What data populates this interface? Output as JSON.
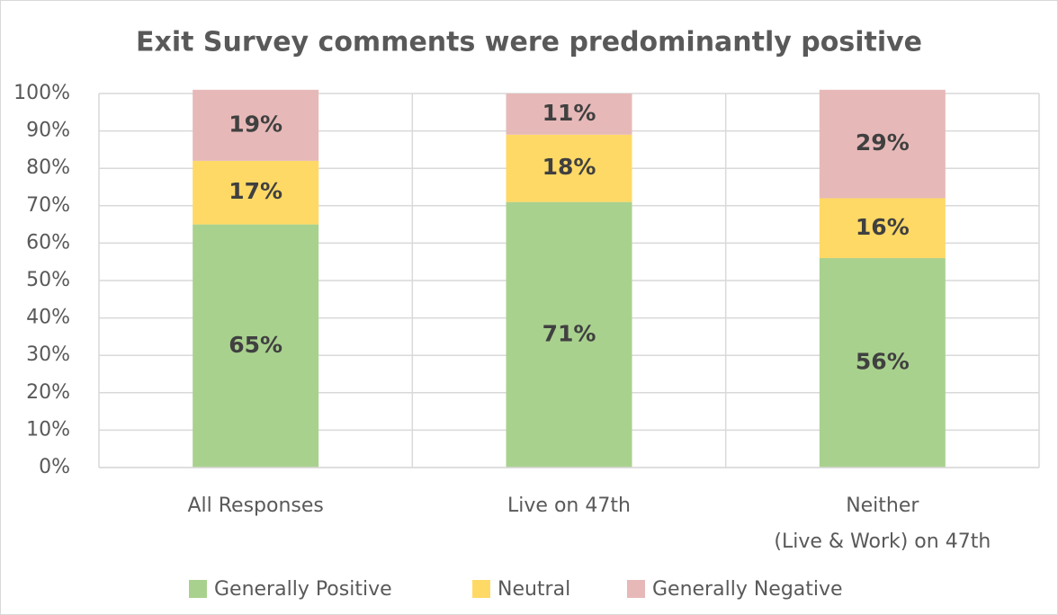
{
  "chart_data": {
    "type": "stacked_bar",
    "title": "Exit Survey comments were predominantly positive",
    "categories": [
      "All Responses",
      "Live on 47th",
      "Neither\n(Live & Work) on 47th"
    ],
    "series": [
      {
        "name": "Generally Positive",
        "color": "#a9d18e",
        "values": [
          65,
          71,
          56
        ],
        "value_labels": [
          "65%",
          "71%",
          "56%"
        ]
      },
      {
        "name": "Neutral",
        "color": "#ffd966",
        "values": [
          17,
          18,
          16
        ],
        "value_labels": [
          "17%",
          "18%",
          "16%"
        ]
      },
      {
        "name": "Generally Negative",
        "color": "#e6b9b8",
        "values": [
          19,
          11,
          29
        ],
        "value_labels": [
          "19%",
          "11%",
          "29%"
        ]
      }
    ],
    "ylim": [
      0,
      100
    ],
    "yticks": [
      {
        "value": 0,
        "label": "0%"
      },
      {
        "value": 10,
        "label": "10%"
      },
      {
        "value": 20,
        "label": "20%"
      },
      {
        "value": 30,
        "label": "30%"
      },
      {
        "value": 40,
        "label": "40%"
      },
      {
        "value": 50,
        "label": "50%"
      },
      {
        "value": 60,
        "label": "60%"
      },
      {
        "value": 70,
        "label": "70%"
      },
      {
        "value": 80,
        "label": "80%"
      },
      {
        "value": 90,
        "label": "90%"
      },
      {
        "value": 100,
        "label": "100%"
      }
    ],
    "grid": true,
    "legend": "bottom"
  }
}
